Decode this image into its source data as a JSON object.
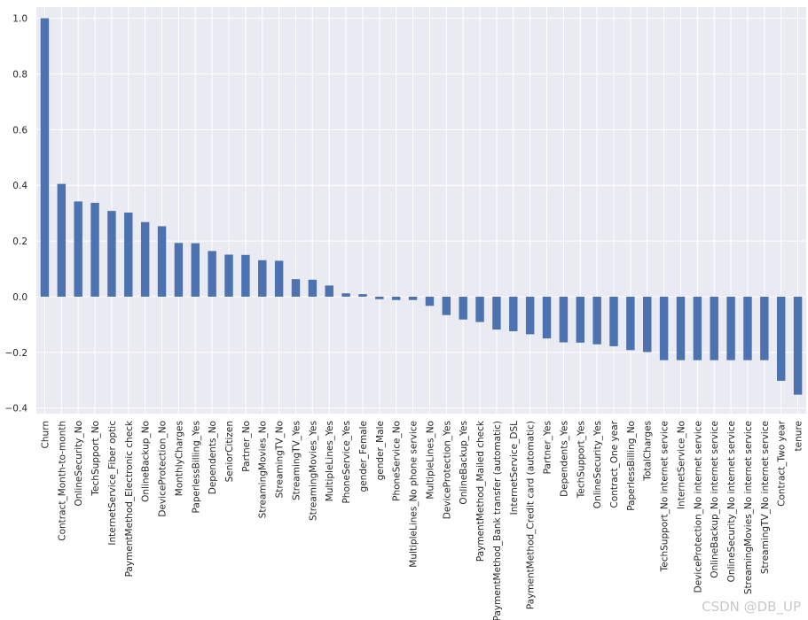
{
  "watermark": "CSDN @DB_UP",
  "chart_data": {
    "type": "bar",
    "title": "",
    "xlabel": "",
    "ylabel": "",
    "ylim": [
      -0.42,
      1.04
    ],
    "yticks": [
      -0.4,
      -0.2,
      0.0,
      0.2,
      0.4,
      0.6,
      0.8,
      1.0
    ],
    "ytick_labels": [
      "−0.4",
      "−0.2",
      "0.0",
      "0.2",
      "0.4",
      "0.6",
      "0.8",
      "1.0"
    ],
    "grid": true,
    "style": "seaborn-darkgrid",
    "bar_color": "#4c72b0",
    "background_color": "#eaeaf2",
    "categories": [
      "Churn",
      "Contract_Month-to-month",
      "OnlineSecurity_No",
      "TechSupport_No",
      "InternetService_Fiber optic",
      "PaymentMethod_Electronic check",
      "OnlineBackup_No",
      "DeviceProtection_No",
      "MonthlyCharges",
      "PaperlessBilling_Yes",
      "Dependents_No",
      "SeniorCitizen",
      "Partner_No",
      "StreamingMovies_No",
      "StreamingTV_No",
      "StreamingTV_Yes",
      "StreamingMovies_Yes",
      "MultipleLines_Yes",
      "PhoneService_Yes",
      "gender_Female",
      "gender_Male",
      "PhoneService_No",
      "MultipleLines_No phone service",
      "MultipleLines_No",
      "DeviceProtection_Yes",
      "OnlineBackup_Yes",
      "PaymentMethod_Mailed check",
      "PaymentMethod_Bank transfer (automatic)",
      "InternetService_DSL",
      "PaymentMethod_Credit card (automatic)",
      "Partner_Yes",
      "Dependents_Yes",
      "TechSupport_Yes",
      "OnlineSecurity_Yes",
      "Contract_One year",
      "PaperlessBilling_No",
      "TotalCharges",
      "TechSupport_No internet service",
      "InternetService_No",
      "DeviceProtection_No internet service",
      "OnlineBackup_No internet service",
      "OnlineSecurity_No internet service",
      "StreamingMovies_No internet service",
      "StreamingTV_No internet service",
      "Contract_Two year",
      "tenure"
    ],
    "values": [
      1.0,
      0.405,
      0.342,
      0.337,
      0.308,
      0.302,
      0.268,
      0.253,
      0.193,
      0.192,
      0.164,
      0.151,
      0.15,
      0.131,
      0.129,
      0.063,
      0.061,
      0.04,
      0.012,
      0.009,
      -0.009,
      -0.012,
      -0.012,
      -0.033,
      -0.066,
      -0.082,
      -0.091,
      -0.118,
      -0.124,
      -0.135,
      -0.15,
      -0.164,
      -0.165,
      -0.171,
      -0.178,
      -0.192,
      -0.199,
      -0.228,
      -0.228,
      -0.228,
      -0.228,
      -0.228,
      -0.228,
      -0.228,
      -0.302,
      -0.352
    ]
  }
}
